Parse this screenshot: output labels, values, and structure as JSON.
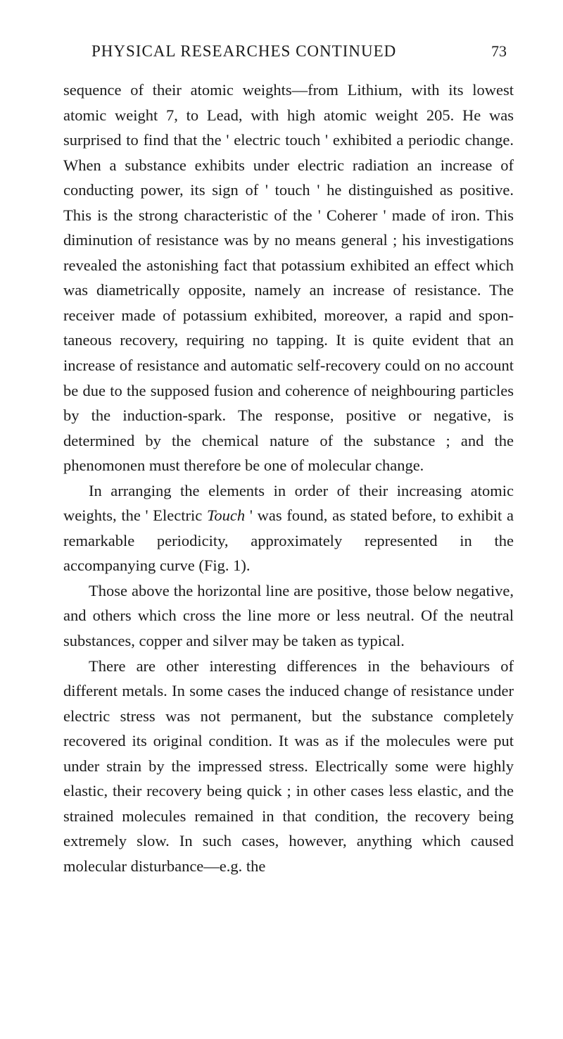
{
  "header": {
    "title": "PHYSICAL RESEARCHES CONTINUED",
    "page_number": "73"
  },
  "paragraphs": {
    "p1": "sequence of their atomic weights—from Lithium, with its lowest atomic weight 7, to Lead, with high atomic weight 205. He was surprised to find that the ' electric touch ' exhibited a periodic change. When a substance exhibits under electric radiation an increase of conducting power, its sign of ' touch ' he distinguished as positive. This is the strong characteristic of the ' Coherer ' made of iron. This diminution of resistance was by no means general ; his investigations revealed the astonishing fact that potassium exhibited an effect which was diametrically opposite, namely an increase of resistance. The receiver made of potassium exhibited, moreover, a rapid and spon­taneous recovery, requiring no tapping. It is quite evident that an increase of resistance and automatic self-recovery could on no account be due to the supposed fusion and coherence of neighbouring particles by the induction-spark. The response, positive or negative, is determined by the chemical nature of the substance ; and the phenomonen must therefore be one of molecular change.",
    "p2_pre": "In arranging the elements in order of their increasing atomic weights, the ' Electric ",
    "p2_italic": "Touch",
    "p2_post": " ' was found, as stated before, to exhibit a remarkable periodicity, approximately represented in the accompanying curve (Fig. 1).",
    "p3": "Those above the horizontal line are positive, those below negative, and others which cross the line more or less neutral. Of the neutral substances, copper and silver may be taken as typical.",
    "p4": "There are other interesting differences in the behaviours of different metals. In some cases the induced change of resistance under electric stress was not permanent, but the substance completely recovered its original condition. It was as if the molecules were put under strain by the impressed stress. Electrically some were highly elastic, their recovery being quick ; in other cases less elastic, and the strained molecules remained in that condition, the recovery being extremely slow. In such cases, however, anything which caused molecular disturbance—e.g. the"
  }
}
